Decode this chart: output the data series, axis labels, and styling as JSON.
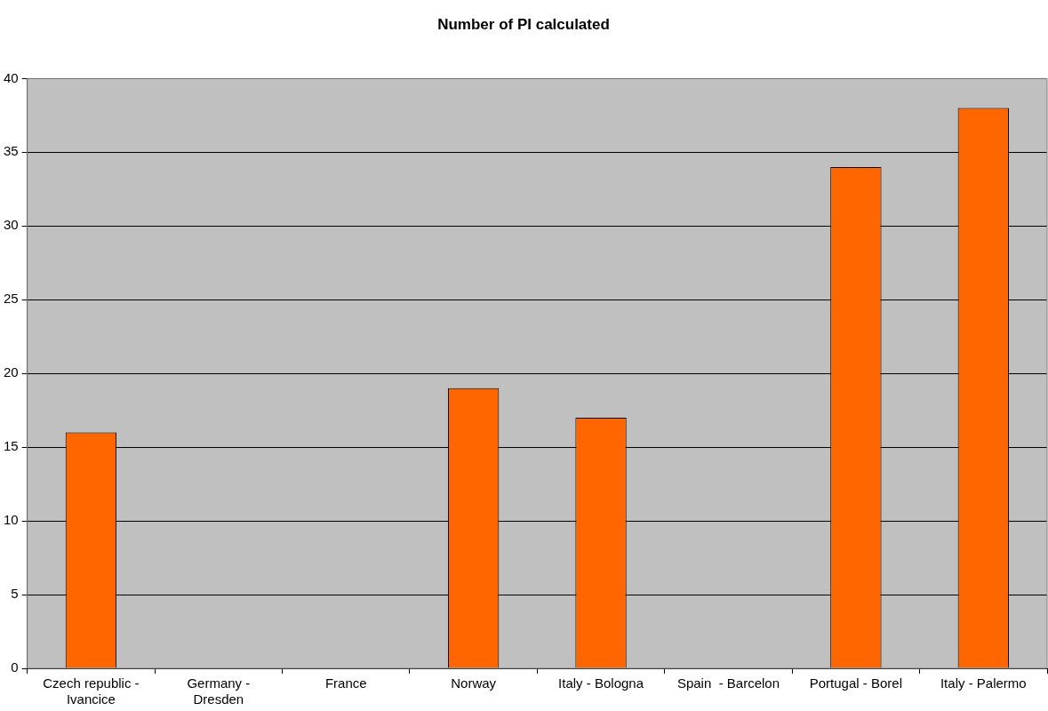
{
  "chart_data": {
    "type": "bar",
    "title": "Number of PI calculated",
    "categories": [
      "Czech republic - Ivancice",
      "Germany - Dresden",
      "France",
      "Norway",
      "Italy - Bologna",
      "Spain  - Barcelon",
      "Portugal - Borel",
      "Italy - Palermo"
    ],
    "values": [
      16,
      null,
      null,
      19,
      17,
      null,
      34,
      38
    ],
    "color": "#ff6600",
    "ylim": [
      0,
      40
    ],
    "yticks": [
      0,
      5,
      10,
      15,
      20,
      25,
      30,
      35,
      40
    ],
    "grid": "y",
    "legend": false
  }
}
